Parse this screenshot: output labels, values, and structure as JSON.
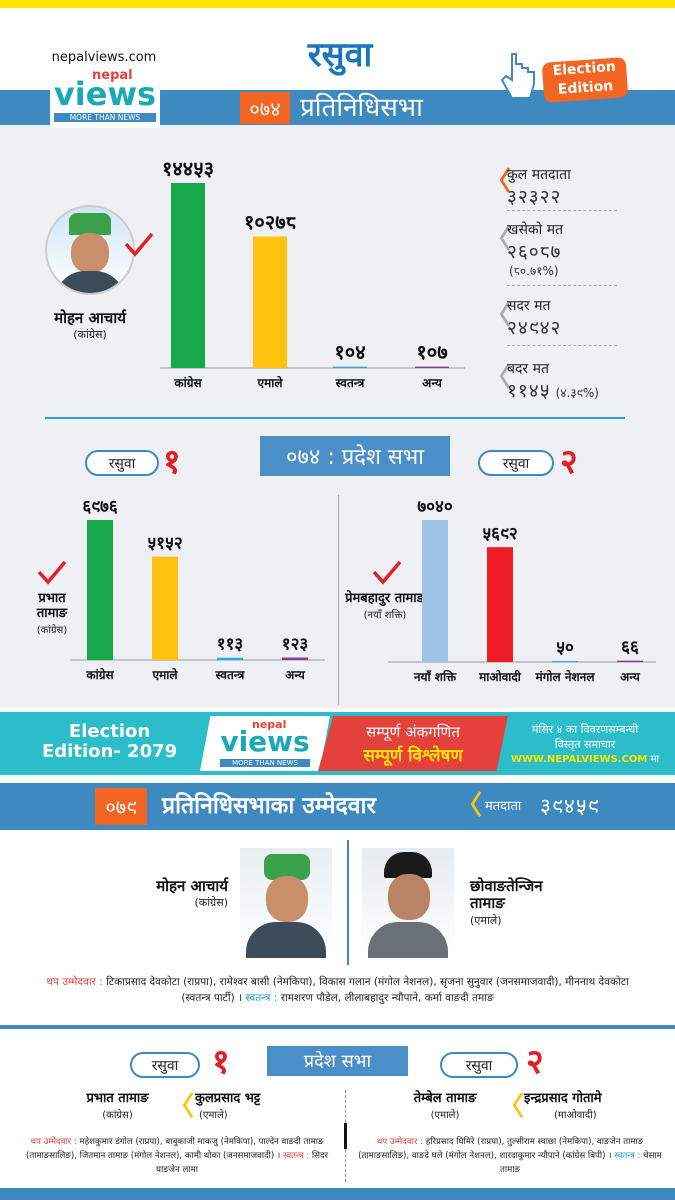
{
  "header": {
    "site": "nepalviews.com",
    "logo_top": "nepal",
    "logo_main": "views",
    "logo_tag": "MORE THAN NEWS",
    "district": "रसुवा",
    "year": "०७४",
    "house": "प्रतिनिधिसभा",
    "badge_line1": "Election",
    "badge_line2": "Edition"
  },
  "chart_data": [
    {
      "type": "bar",
      "categories": [
        "कांग्रेस",
        "एमाले",
        "स्वतन्त्र",
        "अन्य"
      ],
      "values": [
        14453,
        10278,
        104,
        107
      ],
      "value_labels": [
        "१४४५३",
        "१०२७८",
        "१०४",
        "१०७"
      ],
      "colors": [
        "#17a84b",
        "#ffc20e",
        "#29abe2",
        "#7b3f9e"
      ],
      "winner": {
        "name": "मोहन आचार्य",
        "party": "(कांग्रेस)"
      }
    },
    {
      "type": "bar",
      "categories": [
        "कांग्रेस",
        "एमाले",
        "स्वतन्त्र",
        "अन्य"
      ],
      "values": [
        6976,
        5152,
        113,
        123
      ],
      "value_labels": [
        "६९७६",
        "५१५२",
        "११३",
        "१२३"
      ],
      "colors": [
        "#17a84b",
        "#ffc20e",
        "#29abe2",
        "#7b3f9e"
      ],
      "winner": {
        "name": "प्रभात तामाङ",
        "party": "(कांग्रेस)"
      },
      "constituency": "रसुवा",
      "number": "१"
    },
    {
      "type": "bar",
      "categories": [
        "नयाँ शक्ति",
        "माओवादी",
        "मंगोल नेशनल",
        "अन्य"
      ],
      "values": [
        7040,
        5692,
        50,
        66
      ],
      "value_labels": [
        "७०४०",
        "५६९२",
        "५०",
        "६६"
      ],
      "colors": [
        "#9dc3e6",
        "#ee1c25",
        "#29abe2",
        "#7b3f9e"
      ],
      "winner": {
        "name": "प्रेमबहादुर तामाङ",
        "party": "(नयाँ शक्ति)"
      },
      "constituency": "रसुवा",
      "number": "२"
    }
  ],
  "stats": [
    {
      "label": "कुल मतदाता",
      "value": "३२३२२"
    },
    {
      "label": "खसेको मत",
      "value": "२६०८७",
      "note": "(८०.७१%)"
    },
    {
      "label": "सदर मत",
      "value": "२४९४२"
    },
    {
      "label": "बदर मत",
      "value": "११४५",
      "note": "(४.३९%)"
    }
  ],
  "province_title": "०७४ : प्रदेश सभा",
  "banner": {
    "edition_line1": "Election",
    "edition_line2": "Edition- 2079",
    "logo_top": "nepal",
    "logo_main": "views",
    "logo_tag": "MORE THAN NEWS",
    "line1": "सम्पूर्ण अंकगणित",
    "line2": "सम्पूर्ण विश्लेषण",
    "note1": "मंसिर ४ का विवरणसम्बन्धी",
    "note2": "विस्तृत समाचार",
    "url": "WWW.NEPALVIEWS.COM",
    "url_suffix": "मा"
  },
  "section2": {
    "year": "०७९",
    "title": "प्रतिनिधिसभाका उम्मेदवार",
    "voters_label": "मतदाता",
    "voters": "३९४५९",
    "candidates": [
      {
        "name": "मोहन आचार्य",
        "party": "(कांग्रेस)"
      },
      {
        "name": "छोवाङतेन्जिन तामाङ",
        "party": "(एमाले)"
      }
    ],
    "others_label": "थप उम्मेदवार :",
    "others": "टिकाप्रसाद देवकोटा (राप्रपा), रामेश्वर बासी (नेमकिपा), विकास गलान (मंगोल नेशनल), सृजना सुनुवार (जनसमाजवादी), मीननाथ देवकोटा (स्वतन्त्र पार्टी) ।",
    "independent_label": "स्वतन्त्र :",
    "independent": "रामशरण पौडेल, लीलाबहादुर न्यौपाने, कर्मा वाङदी तमाङ"
  },
  "section3": {
    "title": "प्रदेश सभा",
    "constituencies": [
      {
        "district": "रसुवा",
        "number": "१",
        "candidates": [
          {
            "name": "प्रभात तामाङ",
            "party": "(कांग्रेस)"
          },
          {
            "name": "कुलप्रसाद भट्ट",
            "party": "(एमाले)"
          }
        ],
        "others_label": "थप उम्मेदवार :",
        "others": "महेशकुमार डंगोल (राप्रपा), बाबुकाजी माकजु (नेमकिपा), पाल्देन वाङदी तामाङ (तामाङसालिङ), जितमान तामाङ (मंगोल नेशनल), कामी थोका (जनसमाजवादी) ।",
        "independent_label": "स्वतन्त्र :",
        "independent": "सिदर याङजेन लामा"
      },
      {
        "district": "रसुवा",
        "number": "२",
        "candidates": [
          {
            "name": "तेम्बेल तामाङ",
            "party": "(एमाले)"
          },
          {
            "name": "इन्द्रप्रसाद गोतामे",
            "party": "(माओवादी)"
          }
        ],
        "others_label": "थप उम्मेदवार :",
        "others": "हरिप्रसाद घिमिरे (राप्रपा), तुल्सीराम स्वाछा (नेमकिपा), वाङजेन तामाङ (तामाङसालिङ), वाङदे घले (मंगोल नेशनल), शारदाकुमार न्यौपाने (कांग्रेस बिपी) ।",
        "independent_label": "स्वतन्त्र :",
        "independent": "चेसाम तामाङ"
      }
    ]
  }
}
